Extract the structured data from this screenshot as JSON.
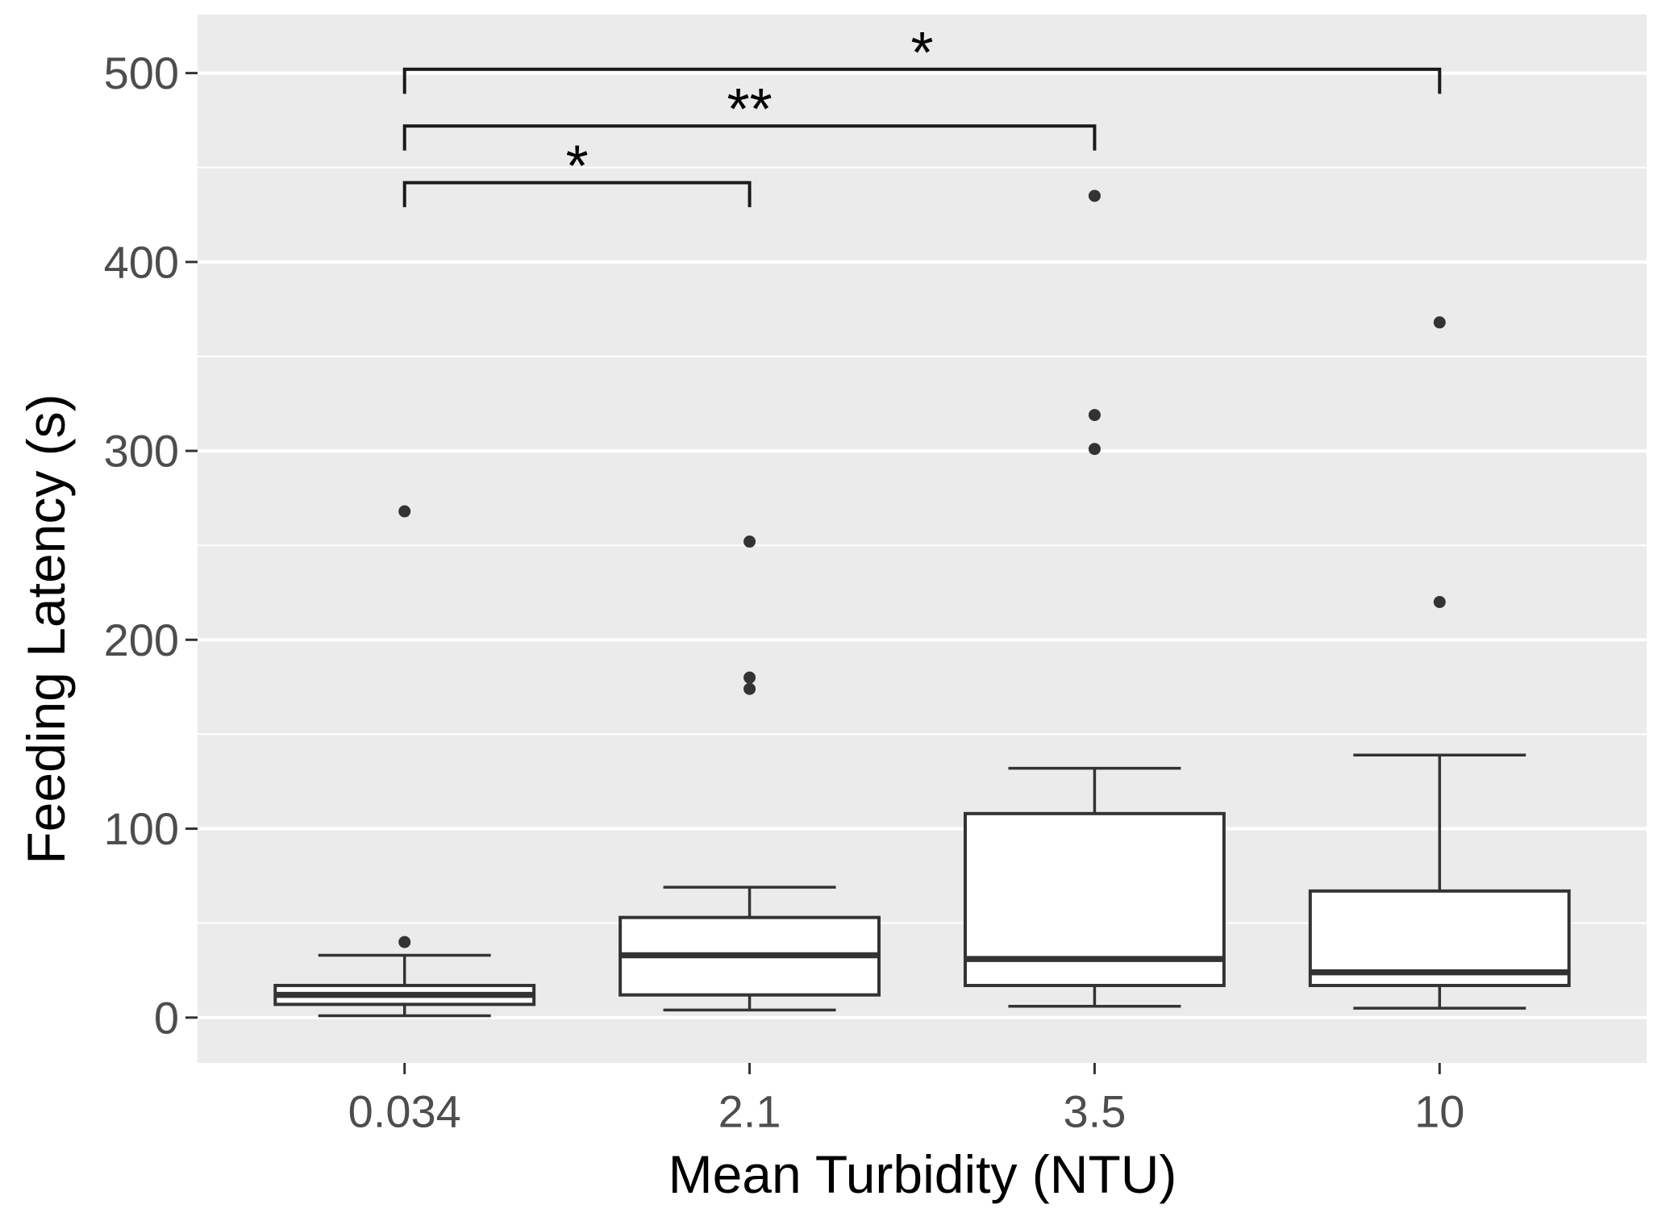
{
  "chart_data": {
    "type": "boxplot",
    "title": "",
    "xlabel": "Mean Turbidity (NTU)",
    "ylabel": "Feeding Latency (s)",
    "categories": [
      "0.034",
      "2.1",
      "3.5",
      "10"
    ],
    "ylim": [
      -24,
      531
    ],
    "y_major_ticks": [
      0,
      100,
      200,
      300,
      400,
      500
    ],
    "y_minor_ticks": [
      50,
      150,
      250,
      350,
      450
    ],
    "grid": true,
    "legend": "none",
    "boxes": [
      {
        "category": "0.034",
        "whisker_low": 1,
        "q1": 7,
        "median": 12,
        "q3": 17,
        "whisker_high": 33,
        "outliers": [
          40,
          268
        ]
      },
      {
        "category": "2.1",
        "whisker_low": 4,
        "q1": 12,
        "median": 33,
        "q3": 53,
        "whisker_high": 69,
        "outliers": [
          174,
          180,
          252
        ]
      },
      {
        "category": "3.5",
        "whisker_low": 6,
        "q1": 17,
        "median": 31,
        "q3": 108,
        "whisker_high": 132,
        "outliers": [
          301,
          319,
          435
        ]
      },
      {
        "category": "10",
        "whisker_low": 5,
        "q1": 17,
        "median": 24,
        "q3": 67,
        "whisker_high": 139,
        "outliers": [
          220,
          368
        ]
      }
    ],
    "significance_brackets": [
      {
        "from": "0.034",
        "to": "2.1",
        "label": "*",
        "y": 442,
        "tick_depth": 13
      },
      {
        "from": "0.034",
        "to": "3.5",
        "label": "**",
        "y": 472,
        "tick_depth": 13
      },
      {
        "from": "0.034",
        "to": "10",
        "label": "*",
        "y": 502,
        "tick_depth": 13
      }
    ],
    "colors": {
      "panel_bg": "#ebebeb",
      "grid": "#ffffff",
      "box_fill": "#ffffff",
      "box_stroke": "#333333",
      "outlier": "#333333",
      "bracket": "#1a1a1a",
      "tick_text": "#4d4d4d",
      "title_text": "#000000",
      "tick_mark": "#333333"
    }
  }
}
